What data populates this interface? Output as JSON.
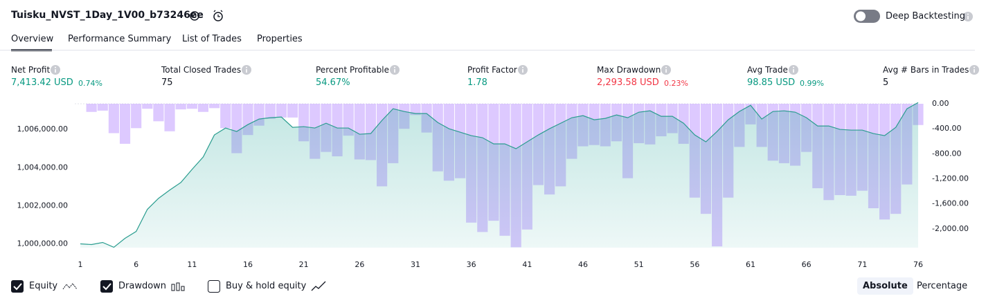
{
  "header": {
    "title": "Tuisku_NVST_1Day_1V00_b73246ee",
    "toggle_label": "Deep Backtesting"
  },
  "tabs": [
    {
      "label": "Overview",
      "active": true
    },
    {
      "label": "Performance Summary",
      "active": false
    },
    {
      "label": "List of Trades",
      "active": false
    },
    {
      "label": "Properties",
      "active": false
    }
  ],
  "metrics": [
    {
      "label": "Net Profit",
      "value": "7,413.42 USD",
      "percent": "0.74%",
      "color": "#089981"
    },
    {
      "label": "Total Closed Trades",
      "value": "75",
      "color": "#131722"
    },
    {
      "label": "Percent Profitable",
      "value": "54.67%",
      "color": "#089981"
    },
    {
      "label": "Profit Factor",
      "value": "1.78",
      "color": "#089981"
    },
    {
      "label": "Max Drawdown",
      "value": "2,293.58 USD",
      "percent": "0.23%",
      "color": "#f23645"
    },
    {
      "label": "Avg Trade",
      "value": "98.85 USD",
      "percent": "0.99%",
      "color": "#089981"
    },
    {
      "label": "Avg # Bars in Trades",
      "value": "5",
      "color": "#131722"
    }
  ],
  "chart_data": {
    "type": "combo",
    "x": [
      1,
      2,
      3,
      4,
      5,
      6,
      7,
      8,
      9,
      10,
      11,
      12,
      13,
      14,
      15,
      16,
      17,
      18,
      19,
      20,
      21,
      22,
      23,
      24,
      25,
      26,
      27,
      28,
      29,
      30,
      31,
      32,
      33,
      34,
      35,
      36,
      37,
      38,
      39,
      40,
      41,
      42,
      43,
      44,
      45,
      46,
      47,
      48,
      49,
      50,
      51,
      52,
      53,
      54,
      55,
      56,
      57,
      58,
      59,
      60,
      61,
      62,
      63,
      64,
      65,
      66,
      67,
      68,
      69,
      70,
      71,
      72,
      73,
      74,
      75,
      76
    ],
    "xlim": [
      1,
      76
    ],
    "xticks": [
      1,
      6,
      11,
      16,
      21,
      26,
      31,
      36,
      41,
      46,
      51,
      56,
      61,
      66,
      71,
      76
    ],
    "ylim": [
      999800,
      1007350
    ],
    "yticks": [
      {
        "value": 1000000,
        "label": "1,000,000.00"
      },
      {
        "value": 1002000,
        "label": "1,002,000.00"
      },
      {
        "value": 1004000,
        "label": "1,004,000.00"
      },
      {
        "value": 1006000,
        "label": "1,006,000.00"
      }
    ],
    "y2lim": [
      -2300,
      0
    ],
    "y2ticks": [
      {
        "value": 0,
        "label": "0.00"
      },
      {
        "value": -400,
        "label": "-400.00"
      },
      {
        "value": -800,
        "label": "-800.00"
      },
      {
        "value": -1200,
        "label": "-1,200.00"
      },
      {
        "value": -1600,
        "label": "-1,600.00"
      },
      {
        "value": -2000,
        "label": "-2,000.00"
      }
    ],
    "series": [
      {
        "name": "Equity",
        "type": "line",
        "visible": true,
        "color": "#2a9d8f",
        "values": [
          1000000,
          999964,
          1000072,
          999819,
          1000289,
          1000651,
          1001809,
          1002387,
          1002821,
          1003219,
          1003906,
          1004558,
          1005715,
          1006077,
          1005896,
          1006258,
          1006547,
          1006619,
          1006655,
          1006113,
          1006149,
          1006077,
          1006330,
          1006077,
          1006077,
          1005751,
          1005788,
          1006475,
          1007090,
          1006945,
          1006837,
          1006837,
          1006366,
          1006041,
          1005860,
          1005679,
          1005571,
          1005245,
          1005245,
          1004992,
          1005353,
          1005715,
          1006041,
          1006330,
          1006619,
          1006728,
          1006511,
          1006583,
          1006764,
          1006619,
          1006909,
          1006981,
          1006692,
          1006692,
          1006330,
          1005715,
          1005353,
          1005896,
          1006511,
          1006945,
          1007270,
          1006547,
          1006945,
          1006981,
          1006909,
          1006619,
          1006185,
          1006185,
          1006004,
          1005968,
          1005968,
          1005788,
          1005679,
          1006113,
          1007090,
          1007413.42
        ]
      },
      {
        "name": "Drawdown",
        "type": "bar",
        "axis": "y2",
        "visible": true,
        "color": "#b388ff",
        "values": [
          0,
          -130,
          -110,
          -470,
          -640,
          -390,
          -80,
          -280,
          -440,
          -90,
          -80,
          -130,
          -70,
          -390,
          -790,
          -500,
          -350,
          -240,
          -220,
          -220,
          -600,
          -880,
          -770,
          -840,
          -510,
          -890,
          -900,
          -1320,
          -950,
          -400,
          -180,
          -460,
          -1080,
          -1230,
          -1190,
          -1900,
          -2050,
          -1870,
          -2110,
          -2293.58,
          -2010,
          -1300,
          -1450,
          -1320,
          -880,
          -680,
          -660,
          -680,
          -600,
          -1190,
          -630,
          -650,
          -520,
          -470,
          -640,
          -1500,
          -1760,
          -2280,
          -1500,
          -690,
          -330,
          -690,
          -910,
          -950,
          -990,
          -770,
          -1350,
          -1540,
          -1460,
          -1470,
          -1390,
          -1670,
          -1850,
          -1760,
          -1290,
          -340
        ]
      }
    ]
  },
  "footer": {
    "toggles": [
      {
        "label": "Buy & hold equity",
        "checked": false
      }
    ],
    "modes": [
      {
        "label": "Absolute",
        "active": true
      },
      {
        "label": "Percentage",
        "active": false
      }
    ]
  }
}
